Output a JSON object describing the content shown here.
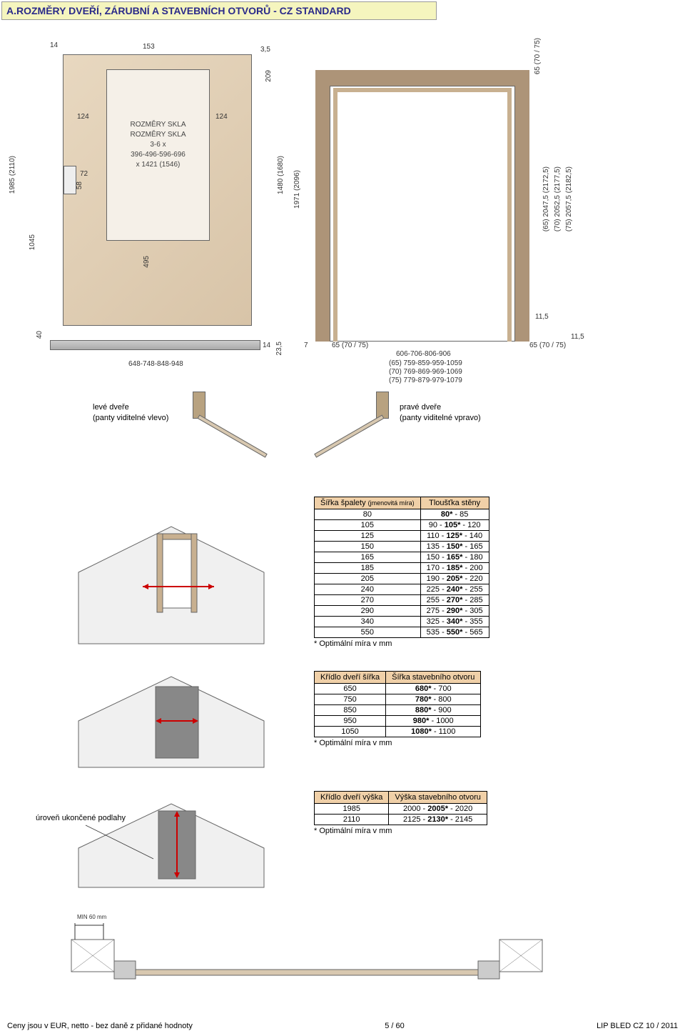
{
  "title": "A.ROZMĚRY DVEŘÍ, ZÁRUBNÍ A STAVEBNÍCH OTVORŮ  - CZ STANDARD",
  "colors": {
    "title_bg": "#f5f5be",
    "title_text": "#2a2a8a",
    "wood": "#d8c4a8",
    "wood_light": "#e8d8c0",
    "frame": "#ad9478",
    "table_header": "#f0d0a8"
  },
  "diagram": {
    "glass_label": {
      "l1": "ROZMĚRY SKLA",
      "l2": "ROZMĚRY SKLA",
      "l3": "3-6 x",
      "l4": "396-496-596-696",
      "l5": "x 1421 (1546)"
    },
    "dims": {
      "d14": "14",
      "d153": "153",
      "d35": "3,5",
      "d124l": "124",
      "d124r": "124",
      "d72": "72",
      "d58": "58",
      "d209": "209",
      "d1985": "1985 (2110)",
      "d1045": "1045",
      "d495": "495",
      "d1480": "1480 (1680)",
      "d40": "40",
      "d14b": "14",
      "d235": "23,5",
      "d648": "648-748-848-948",
      "d1971": "1971 (2096)",
      "d65a": "(65) 2047,5 (2172,5)",
      "d70a": "(70) 2052,5 (2177,5)",
      "d75a": "(75) 2057,5 (2182,5)",
      "d6570": "65 (70 / 75)",
      "d115": "11,5",
      "d606": "606-706-806-906",
      "d759": "(65) 759-859-959-1059",
      "d769": "(70) 769-869-969-1069",
      "d779": "(75) 779-879-979-1079",
      "d7": "7"
    }
  },
  "hinge": {
    "left_l1": "levé dveře",
    "left_l2": "(panty viditelné vlevo)",
    "right_l1": "pravé dveře",
    "right_l2": "(panty viditelné vpravo)"
  },
  "table1": {
    "h1": "Šířka špalety (jmenovitá míra)",
    "h2": "Tloušťka stěny",
    "rows": [
      [
        "80",
        "80* - 85"
      ],
      [
        "105",
        "90 - 105* - 120"
      ],
      [
        "125",
        "110 - 125* - 140"
      ],
      [
        "150",
        "135 - 150* - 165"
      ],
      [
        "165",
        "150 - 165* - 180"
      ],
      [
        "185",
        "170 - 185* - 200"
      ],
      [
        "205",
        "190 - 205* - 220"
      ],
      [
        "240",
        "225 - 240* - 255"
      ],
      [
        "270",
        "255 - 270* - 285"
      ],
      [
        "290",
        "275 - 290* - 305"
      ],
      [
        "340",
        "325 - 340* - 355"
      ],
      [
        "550",
        "535 - 550* - 565"
      ]
    ],
    "note": "* Optimální míra v mm"
  },
  "table2": {
    "h1": "Křídlo dveří šířka",
    "h2": "Šířka stavebního otvoru",
    "rows": [
      [
        "650",
        "680* - 700"
      ],
      [
        "750",
        "780* - 800"
      ],
      [
        "850",
        "880* - 900"
      ],
      [
        "950",
        "980* - 1000"
      ],
      [
        "1050",
        "1080* - 1100"
      ]
    ],
    "note": "* Optimální míra v mm"
  },
  "table3": {
    "h1": "Křídlo dveří výška",
    "h2": "Výška stavebního otvoru",
    "rows": [
      [
        "1985",
        "2000 - 2005* - 2020"
      ],
      [
        "2110",
        "2125 - 2130* - 2145"
      ]
    ],
    "note": "* Optimální míra v mm",
    "floor_label": "úroveň ukončené podlahy",
    "min60": "MIN 60 mm"
  },
  "footer": {
    "left": "Ceny jsou v EUR, netto - bez daně z přidané hodnoty",
    "center": "5 / 60",
    "right": "LIP BLED CZ 10 / 2011"
  }
}
